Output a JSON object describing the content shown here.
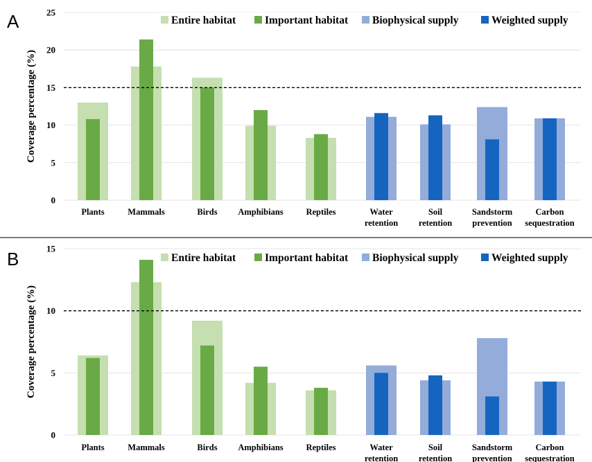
{
  "chart_data": [
    {
      "panel": "A",
      "type": "bar",
      "ylabel": "Coverage percentage (%)",
      "ylim": [
        0,
        25
      ],
      "yticks": [
        "0",
        "5",
        "10",
        "15",
        "20",
        "25"
      ],
      "threshold": 15,
      "grid": true,
      "legend_position": "top",
      "categories": [
        [
          "Plants"
        ],
        [
          "Mammals"
        ],
        [
          "Birds"
        ],
        [
          "Amphibians"
        ],
        [
          "Reptiles"
        ],
        [
          "Water",
          "retention"
        ],
        [
          "Soil",
          "retention"
        ],
        [
          "Sandstorm",
          "prevention"
        ],
        [
          "Carbon",
          "sequestration"
        ]
      ],
      "groups": [
        "habitat",
        "habitat",
        "habitat",
        "habitat",
        "habitat",
        "service",
        "service",
        "service",
        "service"
      ],
      "series": [
        {
          "name": "Entire habitat",
          "values": [
            13.0,
            17.8,
            16.3,
            9.9,
            8.3,
            null,
            null,
            null,
            null
          ]
        },
        {
          "name": "Important habitat",
          "values": [
            10.8,
            21.4,
            15.0,
            12.0,
            8.8,
            null,
            null,
            null,
            null
          ]
        },
        {
          "name": "Biophysical supply",
          "values": [
            null,
            null,
            null,
            null,
            null,
            11.1,
            10.1,
            12.4,
            10.9
          ]
        },
        {
          "name": "Weighted supply",
          "values": [
            null,
            null,
            null,
            null,
            null,
            11.6,
            11.3,
            8.1,
            10.9
          ]
        }
      ]
    },
    {
      "panel": "B",
      "type": "bar",
      "ylabel": "Coverage percentage (%)",
      "ylim": [
        0,
        15
      ],
      "yticks": [
        "0",
        "5",
        "10",
        "15"
      ],
      "threshold": 10,
      "grid": true,
      "legend_position": "top",
      "categories": [
        [
          "Plants"
        ],
        [
          "Mammals"
        ],
        [
          "Birds"
        ],
        [
          "Amphibians"
        ],
        [
          "Reptiles"
        ],
        [
          "Water",
          "retention"
        ],
        [
          "Soil",
          "retention"
        ],
        [
          "Sandstorm",
          "prevention"
        ],
        [
          "Carbon",
          "sequestration"
        ]
      ],
      "groups": [
        "habitat",
        "habitat",
        "habitat",
        "habitat",
        "habitat",
        "service",
        "service",
        "service",
        "service"
      ],
      "series": [
        {
          "name": "Entire habitat",
          "values": [
            6.4,
            12.3,
            9.2,
            4.2,
            3.6,
            null,
            null,
            null,
            null
          ]
        },
        {
          "name": "Important habitat",
          "values": [
            6.2,
            14.1,
            7.2,
            5.5,
            3.8,
            null,
            null,
            null,
            null
          ]
        },
        {
          "name": "Biophysical supply",
          "values": [
            null,
            null,
            null,
            null,
            null,
            5.6,
            4.4,
            7.8,
            4.3
          ]
        },
        {
          "name": "Weighted supply",
          "values": [
            null,
            null,
            null,
            null,
            null,
            5.0,
            4.8,
            3.1,
            4.3
          ]
        }
      ]
    }
  ],
  "colors": {
    "Entire habitat": "#c5dfb0",
    "Important habitat": "#6aaa46",
    "Biophysical supply": "#93acd9",
    "Weighted supply": "#1565c0",
    "grid": "#e4e4e4",
    "separator": "#555555"
  }
}
